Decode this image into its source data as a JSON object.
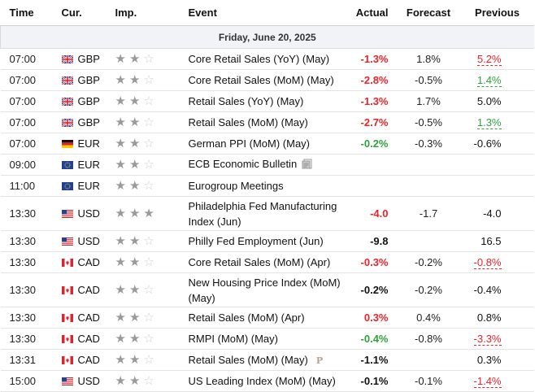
{
  "headers": {
    "time": "Time",
    "currency": "Cur.",
    "importance": "Imp.",
    "event": "Event",
    "actual": "Actual",
    "forecast": "Forecast",
    "previous": "Previous"
  },
  "date_label": "Friday, June 20, 2025",
  "colors": {
    "negative": "#e8242a",
    "positive": "#30a23d"
  },
  "rows": [
    {
      "time": "07:00",
      "flag": "uk-flag-icon",
      "currency": "GBP",
      "stars": 2,
      "event": "Core Retail Sales (YoY) (May)",
      "actual": "-1.3%",
      "actual_tone": "neg",
      "forecast": "1.8%",
      "previous": "5.2%",
      "previous_tone": "rev-neg"
    },
    {
      "time": "07:00",
      "flag": "uk-flag-icon",
      "currency": "GBP",
      "stars": 2,
      "event": "Core Retail Sales (MoM) (May)",
      "actual": "-2.8%",
      "actual_tone": "neg",
      "forecast": "-0.5%",
      "previous": "1.4%",
      "previous_tone": "rev-pos"
    },
    {
      "time": "07:00",
      "flag": "uk-flag-icon",
      "currency": "GBP",
      "stars": 2,
      "event": "Retail Sales (YoY) (May)",
      "actual": "-1.3%",
      "actual_tone": "neg",
      "forecast": "1.7%",
      "previous": "5.0%",
      "previous_tone": "neu"
    },
    {
      "time": "07:00",
      "flag": "uk-flag-icon",
      "currency": "GBP",
      "stars": 2,
      "event": "Retail Sales (MoM) (May)",
      "actual": "-2.7%",
      "actual_tone": "neg",
      "forecast": "-0.5%",
      "previous": "1.3%",
      "previous_tone": "rev-pos"
    },
    {
      "time": "07:00",
      "flag": "germany-flag-icon",
      "currency": "EUR",
      "stars": 2,
      "event": "German PPI (MoM) (May)",
      "actual": "-0.2%",
      "actual_tone": "pos",
      "forecast": "-0.3%",
      "previous": "-0.6%",
      "previous_tone": "neu"
    },
    {
      "time": "09:00",
      "flag": "eu-flag-icon",
      "currency": "EUR",
      "stars": 2,
      "event": "ECB Economic Bulletin",
      "event_icon": "document-icon",
      "actual": "",
      "actual_tone": "neu",
      "forecast": "",
      "previous": "",
      "previous_tone": "neu"
    },
    {
      "time": "11:00",
      "flag": "eu-flag-icon",
      "currency": "EUR",
      "stars": 2,
      "event": "Eurogroup Meetings",
      "actual": "",
      "actual_tone": "neu",
      "forecast": "",
      "previous": "",
      "previous_tone": "neu"
    },
    {
      "time": "13:30",
      "flag": "us-flag-icon",
      "currency": "USD",
      "stars": 3,
      "event": "Philadelphia Fed Manufacturing Index (Jun)",
      "actual": "-4.0",
      "actual_tone": "neg",
      "forecast": "-1.7",
      "previous": "-4.0",
      "previous_tone": "neu"
    },
    {
      "time": "13:30",
      "flag": "us-flag-icon",
      "currency": "USD",
      "stars": 2,
      "event": "Philly Fed Employment (Jun)",
      "actual": "-9.8",
      "actual_tone": "neu",
      "forecast": "",
      "previous": "16.5",
      "previous_tone": "neu"
    },
    {
      "time": "13:30",
      "flag": "canada-flag-icon",
      "currency": "CAD",
      "stars": 2,
      "event": "Core Retail Sales (MoM) (Apr)",
      "actual": "-0.3%",
      "actual_tone": "neg",
      "forecast": "-0.2%",
      "previous": "-0.8%",
      "previous_tone": "rev-neg"
    },
    {
      "time": "13:30",
      "flag": "canada-flag-icon",
      "currency": "CAD",
      "stars": 2,
      "event": "New Housing Price Index (MoM) (May)",
      "actual": "-0.2%",
      "actual_tone": "neu",
      "forecast": "-0.2%",
      "previous": "-0.4%",
      "previous_tone": "neu"
    },
    {
      "time": "13:30",
      "flag": "canada-flag-icon",
      "currency": "CAD",
      "stars": 2,
      "event": "Retail Sales (MoM) (Apr)",
      "actual": "0.3%",
      "actual_tone": "neg",
      "forecast": "0.4%",
      "previous": "0.8%",
      "previous_tone": "neu"
    },
    {
      "time": "13:30",
      "flag": "canada-flag-icon",
      "currency": "CAD",
      "stars": 2,
      "event": "RMPI (MoM) (May)",
      "actual": "-0.4%",
      "actual_tone": "pos",
      "forecast": "-0.8%",
      "previous": "-3.3%",
      "previous_tone": "rev-neg"
    },
    {
      "time": "13:31",
      "flag": "canada-flag-icon",
      "currency": "CAD",
      "stars": 2,
      "event": "Retail Sales (MoM) (May)",
      "event_icon": "preliminary-icon",
      "event_icon_text": "P",
      "actual": "-1.1%",
      "actual_tone": "neu",
      "forecast": "",
      "previous": "0.3%",
      "previous_tone": "neu"
    },
    {
      "time": "15:00",
      "flag": "us-flag-icon",
      "currency": "USD",
      "stars": 2,
      "event": "US Leading Index (MoM) (May)",
      "actual": "-0.1%",
      "actual_tone": "neu",
      "forecast": "-0.1%",
      "previous": "-1.4%",
      "previous_tone": "rev-neg"
    }
  ]
}
